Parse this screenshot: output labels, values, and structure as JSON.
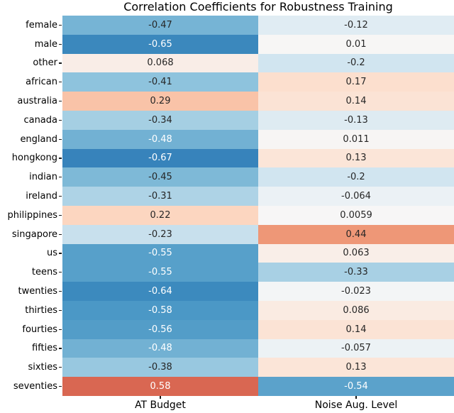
{
  "chart_data": {
    "type": "heatmap",
    "title": "Correlation Coefficients for Robustness Training",
    "columns": [
      "AT Budget",
      "Noise Aug. Level"
    ],
    "rows": [
      "female",
      "male",
      "other",
      "african",
      "australia",
      "canada",
      "england",
      "hongkong",
      "indian",
      "ireland",
      "philippines",
      "singapore",
      "us",
      "teens",
      "twenties",
      "thirties",
      "fourties",
      "fifties",
      "sixties",
      "seventies"
    ],
    "values": [
      [
        -0.47,
        -0.12
      ],
      [
        -0.65,
        0.01
      ],
      [
        0.068,
        -0.2
      ],
      [
        -0.41,
        0.17
      ],
      [
        0.29,
        0.14
      ],
      [
        -0.34,
        -0.13
      ],
      [
        -0.48,
        0.011
      ],
      [
        -0.67,
        0.13
      ],
      [
        -0.45,
        -0.2
      ],
      [
        -0.31,
        -0.064
      ],
      [
        0.22,
        0.0059
      ],
      [
        -0.23,
        0.44
      ],
      [
        -0.55,
        0.063
      ],
      [
        -0.55,
        -0.33
      ],
      [
        -0.64,
        -0.023
      ],
      [
        -0.58,
        0.086
      ],
      [
        -0.56,
        0.14
      ],
      [
        -0.48,
        -0.057
      ],
      [
        -0.38,
        0.13
      ],
      [
        0.58,
        -0.54
      ]
    ],
    "cell_text": [
      [
        "-0.47",
        "-0.12"
      ],
      [
        "-0.65",
        "0.01"
      ],
      [
        "0.068",
        "-0.2"
      ],
      [
        "-0.41",
        "0.17"
      ],
      [
        "0.29",
        "0.14"
      ],
      [
        "-0.34",
        "-0.13"
      ],
      [
        "-0.48",
        "0.011"
      ],
      [
        "-0.67",
        "0.13"
      ],
      [
        "-0.45",
        "-0.2"
      ],
      [
        "-0.31",
        "-0.064"
      ],
      [
        "0.22",
        "0.0059"
      ],
      [
        "-0.23",
        "0.44"
      ],
      [
        "-0.55",
        "0.063"
      ],
      [
        "-0.55",
        "-0.33"
      ],
      [
        "-0.64",
        "-0.023"
      ],
      [
        "-0.58",
        "0.086"
      ],
      [
        "-0.56",
        "0.14"
      ],
      [
        "-0.48",
        "-0.057"
      ],
      [
        "-0.38",
        "0.13"
      ],
      [
        "0.58",
        "-0.54"
      ]
    ],
    "colormap": "RdBu_r",
    "vmin": -1,
    "vmax": 1,
    "colormap_anchors": [
      "#053061",
      "#2166ac",
      "#4393c3",
      "#92c5de",
      "#d1e5f0",
      "#f7f7f7",
      "#fddbc7",
      "#f4a582",
      "#d6604d",
      "#b2182b",
      "#67001f"
    ],
    "annotation_colors": {
      "dark": "#262626",
      "light": "#ffffff",
      "luminance_threshold": 0.408
    },
    "axis_text_color": "#000000",
    "background": "#ffffff",
    "legend": "none",
    "grid": false,
    "xlabel": "",
    "ylabel": ""
  }
}
